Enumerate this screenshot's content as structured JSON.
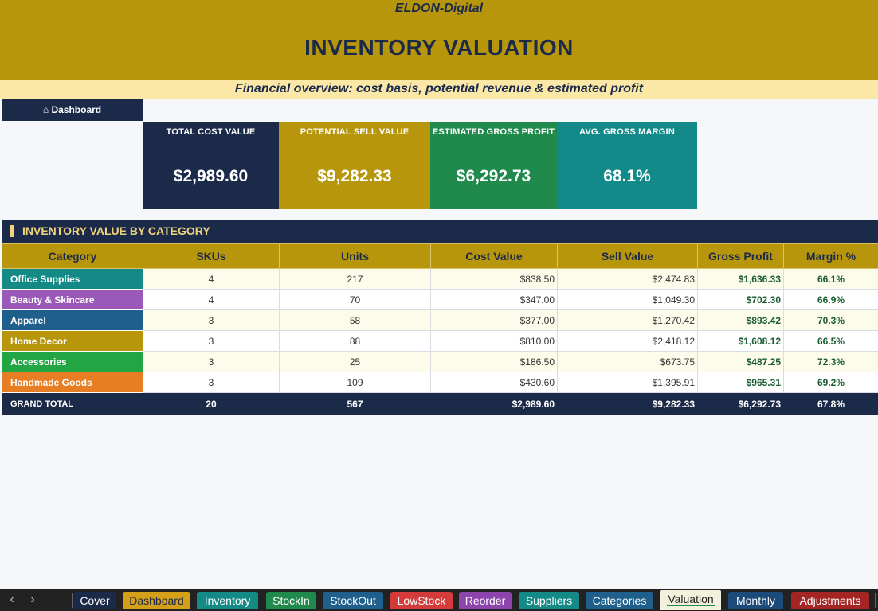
{
  "header": {
    "brand": "ELDON-Digital",
    "title": "INVENTORY VALUATION",
    "subtitle": "Financial overview: cost basis, potential revenue & estimated profit"
  },
  "nav": {
    "dashboard_label": "⌂ Dashboard"
  },
  "kpis": [
    {
      "label": "TOTAL COST VALUE",
      "value": "$2,989.60",
      "color": "#1c2a4a"
    },
    {
      "label": "POTENTIAL SELL VALUE",
      "value": "$9,282.33",
      "color": "#b8960b"
    },
    {
      "label": "ESTIMATED GROSS PROFIT",
      "value": "$6,292.73",
      "color": "#1f8a4b"
    },
    {
      "label": "AVG. GROSS MARGIN",
      "value": "68.1%",
      "color": "#128a8a"
    }
  ],
  "section": {
    "title": "INVENTORY VALUE BY CATEGORY"
  },
  "table": {
    "columns": [
      "Category",
      "SKUs",
      "Units",
      "Cost Value",
      "Sell Value",
      "Gross Profit",
      "Margin %"
    ],
    "rows": [
      {
        "category": "Office Supplies",
        "color": "#138a85",
        "skus": "4",
        "units": "217",
        "cost": "$838.50",
        "sell": "$2,474.83",
        "profit": "$1,636.33",
        "margin": "66.1%"
      },
      {
        "category": "Beauty & Skincare",
        "color": "#9a58b8",
        "skus": "4",
        "units": "70",
        "cost": "$347.00",
        "sell": "$1,049.30",
        "profit": "$702.30",
        "margin": "66.9%"
      },
      {
        "category": "Apparel",
        "color": "#1f5f8b",
        "skus": "3",
        "units": "58",
        "cost": "$377.00",
        "sell": "$1,270.42",
        "profit": "$893.42",
        "margin": "70.3%"
      },
      {
        "category": "Home Decor",
        "color": "#b8960b",
        "skus": "3",
        "units": "88",
        "cost": "$810.00",
        "sell": "$2,418.12",
        "profit": "$1,608.12",
        "margin": "66.5%"
      },
      {
        "category": "Accessories",
        "color": "#22a644",
        "skus": "3",
        "units": "25",
        "cost": "$186.50",
        "sell": "$673.75",
        "profit": "$487.25",
        "margin": "72.3%"
      },
      {
        "category": "Handmade Goods",
        "color": "#e87e24",
        "skus": "3",
        "units": "109",
        "cost": "$430.60",
        "sell": "$1,395.91",
        "profit": "$965.31",
        "margin": "69.2%"
      }
    ],
    "total": {
      "label": "GRAND TOTAL",
      "skus": "20",
      "units": "567",
      "cost": "$2,989.60",
      "sell": "$9,282.33",
      "profit": "$6,292.73",
      "margin": "67.8%"
    }
  },
  "sheet_tabs": {
    "prev_icon": "chevron-left-icon",
    "next_icon": "chevron-right-icon",
    "tabs": [
      {
        "label": "Cover",
        "color": "#1c2a4a"
      },
      {
        "label": "Dashboard",
        "color": "#d4a017",
        "text_color": "#1c2a4a"
      },
      {
        "label": "Inventory",
        "color": "#138a85"
      },
      {
        "label": "StockIn",
        "color": "#1f8a4b"
      },
      {
        "label": "StockOut",
        "color": "#1f5f8b"
      },
      {
        "label": "LowStock",
        "color": "#d63b3b"
      },
      {
        "label": "Reorder",
        "color": "#8e44ad"
      },
      {
        "label": "Suppliers",
        "color": "#138a85"
      },
      {
        "label": "Categories",
        "color": "#1f5f8b"
      },
      {
        "label": "Valuation",
        "active": true
      },
      {
        "label": "Monthly",
        "color": "#1c4a7a"
      },
      {
        "label": "Adjustments",
        "color": "#a52525"
      }
    ]
  }
}
